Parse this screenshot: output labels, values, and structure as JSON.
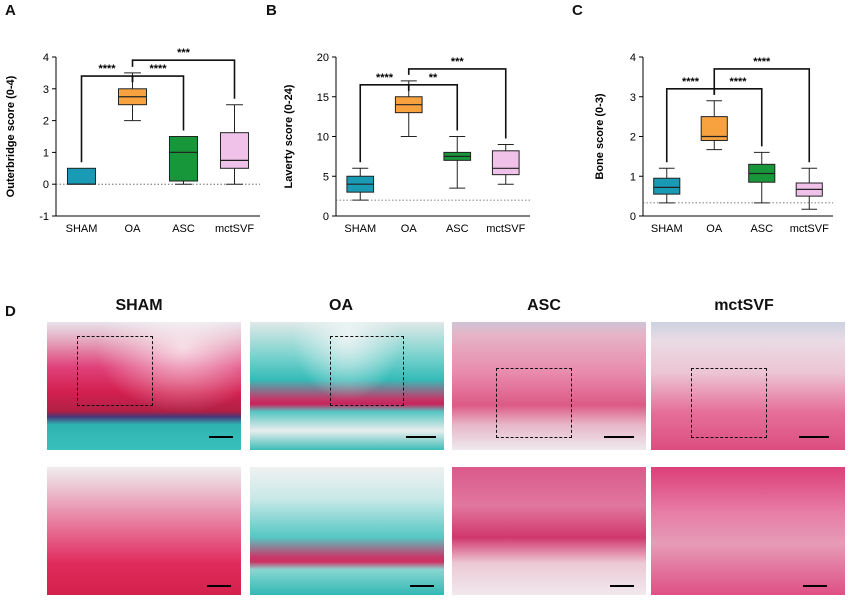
{
  "figure_labels": {
    "A": "A",
    "B": "B",
    "C": "C",
    "D": "D"
  },
  "chart_data": [
    {
      "type": "box",
      "panel": "A",
      "ylabel": "Outerbridge score (0-4)",
      "ylim": [
        -1,
        4
      ],
      "yticks": [
        -1,
        0,
        1,
        2,
        3,
        4
      ],
      "categories": [
        "SHAM",
        "OA",
        "ASC",
        "mctSVF"
      ],
      "colors": [
        "#1a9bb5",
        "#f7a23e",
        "#17973a",
        "#f0c2ea"
      ],
      "reference_line": 0,
      "boxes": [
        {
          "min": 0,
          "q1": 0,
          "median": 0,
          "q3": 0.5,
          "max": 0.5
        },
        {
          "min": 2.0,
          "q1": 2.5,
          "median": 2.75,
          "q3": 3.0,
          "max": 3.5
        },
        {
          "min": 0.0,
          "q1": 0.1,
          "median": 1.0,
          "q3": 1.5,
          "max": 1.5
        },
        {
          "min": 0.0,
          "q1": 0.5,
          "median": 0.75,
          "q3": 1.62,
          "max": 2.5
        }
      ],
      "significance": [
        {
          "from": 0,
          "to": 1,
          "label": "****",
          "y": 3.4
        },
        {
          "from": 1,
          "to": 2,
          "label": "****",
          "y": 3.4
        },
        {
          "from": 1,
          "to": 3,
          "label": "***",
          "y": 3.9
        }
      ]
    },
    {
      "type": "box",
      "panel": "B",
      "ylabel": "Laverty score (0-24)",
      "ylim": [
        0,
        20
      ],
      "yticks": [
        0,
        5,
        10,
        15,
        20
      ],
      "categories": [
        "SHAM",
        "OA",
        "ASC",
        "mctSVF"
      ],
      "colors": [
        "#1a9bb5",
        "#f7a23e",
        "#17973a",
        "#f0c2ea"
      ],
      "reference_line": 2,
      "boxes": [
        {
          "min": 2.0,
          "q1": 3.0,
          "median": 4.0,
          "q3": 5.0,
          "max": 6.0
        },
        {
          "min": 10.0,
          "q1": 13.0,
          "median": 14.0,
          "q3": 15.0,
          "max": 17.0
        },
        {
          "min": 3.5,
          "q1": 7.0,
          "median": 7.5,
          "q3": 8.0,
          "max": 10.0
        },
        {
          "min": 4.0,
          "q1": 5.2,
          "median": 6.0,
          "q3": 8.2,
          "max": 9.0
        }
      ],
      "significance": [
        {
          "from": 0,
          "to": 1,
          "label": "****",
          "y": 16.5
        },
        {
          "from": 1,
          "to": 2,
          "label": "**",
          "y": 16.5
        },
        {
          "from": 1,
          "to": 3,
          "label": "***",
          "y": 18.5
        }
      ]
    },
    {
      "type": "box",
      "panel": "C",
      "ylabel": "Bone score (0-3)",
      "ylim": [
        0,
        4
      ],
      "yticks": [
        0,
        1,
        2,
        3,
        4
      ],
      "categories": [
        "SHAM",
        "OA",
        "ASC",
        "mctSVF"
      ],
      "colors": [
        "#1a9bb5",
        "#f7a23e",
        "#17973a",
        "#f0c2ea"
      ],
      "reference_line": 0.33,
      "boxes": [
        {
          "min": 0.33,
          "q1": 0.55,
          "median": 0.72,
          "q3": 0.95,
          "max": 1.2
        },
        {
          "min": 1.67,
          "q1": 1.9,
          "median": 2.0,
          "q3": 2.5,
          "max": 2.9
        },
        {
          "min": 0.33,
          "q1": 0.85,
          "median": 1.07,
          "q3": 1.3,
          "max": 1.6
        },
        {
          "min": 0.17,
          "q1": 0.5,
          "median": 0.67,
          "q3": 0.83,
          "max": 1.2
        }
      ],
      "significance": [
        {
          "from": 0,
          "to": 1,
          "label": "****",
          "y": 3.2
        },
        {
          "from": 1,
          "to": 2,
          "label": "****",
          "y": 3.2
        },
        {
          "from": 1,
          "to": 3,
          "label": "****",
          "y": 3.7
        }
      ]
    }
  ],
  "histology": {
    "columns": [
      "SHAM",
      "OA",
      "ASC",
      "mctSVF"
    ]
  }
}
